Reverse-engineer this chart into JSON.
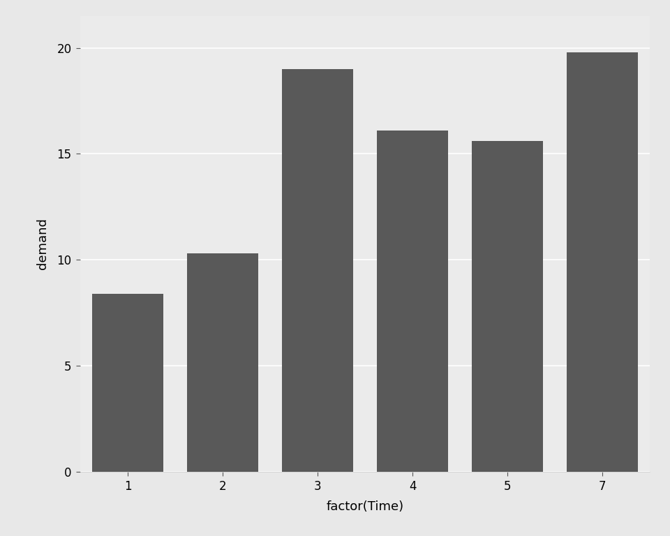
{
  "categories": [
    "1",
    "2",
    "3",
    "4",
    "5",
    "7"
  ],
  "values": [
    8.4,
    10.3,
    19.0,
    16.1,
    15.6,
    19.8
  ],
  "bar_color": "#595959",
  "xlabel": "factor(Time)",
  "ylabel": "demand",
  "ylim": [
    0,
    21.5
  ],
  "yticks": [
    0,
    5,
    10,
    15,
    20
  ],
  "ytick_labels": [
    "0",
    "5",
    "10",
    "15",
    "20"
  ],
  "panel_background": "#EBEBEB",
  "outer_background": "#E8E8E8",
  "grid_color": "#FFFFFF",
  "xlabel_fontsize": 13,
  "ylabel_fontsize": 13,
  "tick_fontsize": 12
}
